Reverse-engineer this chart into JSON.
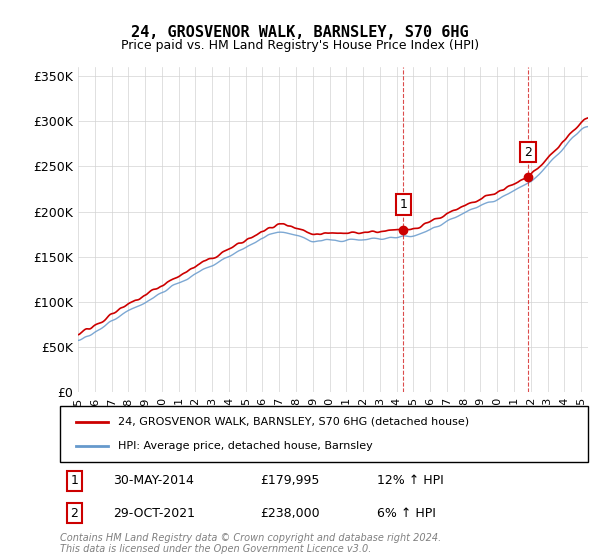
{
  "title": "24, GROSVENOR WALK, BARNSLEY, S70 6HG",
  "subtitle": "Price paid vs. HM Land Registry's House Price Index (HPI)",
  "ylabel_ticks": [
    "£0",
    "£50K",
    "£100K",
    "£150K",
    "£200K",
    "£250K",
    "£300K",
    "£350K"
  ],
  "ytick_values": [
    0,
    50000,
    100000,
    150000,
    200000,
    250000,
    300000,
    350000
  ],
  "ylim": [
    0,
    360000
  ],
  "red_color": "#cc0000",
  "blue_color": "#6699cc",
  "annotation1_label": "1",
  "annotation1_date": "30-MAY-2014",
  "annotation1_price": 179995,
  "annotation1_hpi": "12% ↑ HPI",
  "annotation2_label": "2",
  "annotation2_date": "29-OCT-2021",
  "annotation2_price": 238000,
  "annotation2_hpi": "6% ↑ HPI",
  "legend_line1": "24, GROSVENOR WALK, BARNSLEY, S70 6HG (detached house)",
  "legend_line2": "HPI: Average price, detached house, Barnsley",
  "footer": "Contains HM Land Registry data © Crown copyright and database right 2024.\nThis data is licensed under the Open Government Licence v3.0.",
  "xstart_year": 1995,
  "xend_year": 2025
}
